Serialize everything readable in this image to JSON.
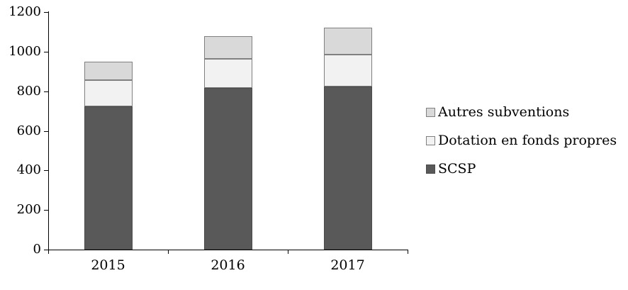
{
  "chart_data": {
    "type": "bar",
    "stacked": true,
    "title": "",
    "xlabel": "",
    "ylabel": "",
    "categories": [
      "2015",
      "2016",
      "2017"
    ],
    "series": [
      {
        "name": "SCSP",
        "fill": "#595959",
        "border": "#4a4a4a",
        "values": [
          725,
          815,
          825
        ]
      },
      {
        "name": "Dotation en fonds propres",
        "fill": "#f2f2f2",
        "border": "#808080",
        "values": [
          130,
          150,
          160
        ]
      },
      {
        "name": "Autres subventions",
        "fill": "#d9d9d9",
        "border": "#808080",
        "values": [
          95,
          115,
          135
        ]
      }
    ],
    "totals": [
      950,
      1080,
      1120
    ],
    "ylim": [
      0,
      1200
    ],
    "ytick_step": 200,
    "ytick_labels": [
      "0",
      "200",
      "400",
      "600",
      "800",
      "1000",
      "1200"
    ],
    "grid": false,
    "legend": {
      "position": "right",
      "entries": [
        "Autres subventions",
        "Dotation en fonds propres",
        "SCSP"
      ]
    },
    "colors": {
      "axis": "#000000",
      "background": "#ffffff",
      "text": "#000000"
    }
  }
}
